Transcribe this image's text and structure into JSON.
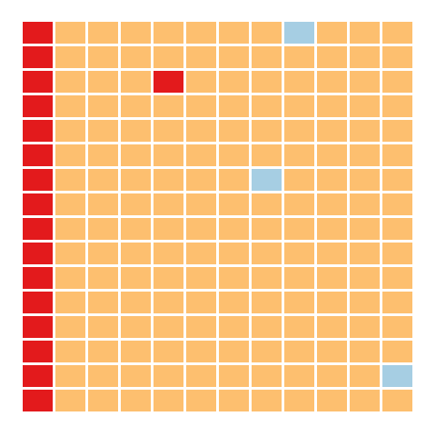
{
  "grid": {
    "rows": 16,
    "cols": 12,
    "colors": {
      "empty": "#fdbf6f",
      "red": "#e31a1c",
      "blue": "#a6cee3"
    },
    "cells": [
      [
        "red",
        "empty",
        "empty",
        "empty",
        "empty",
        "empty",
        "empty",
        "empty",
        "blue",
        "empty",
        "empty",
        "empty"
      ],
      [
        "red",
        "empty",
        "empty",
        "empty",
        "empty",
        "empty",
        "empty",
        "empty",
        "empty",
        "empty",
        "empty",
        "empty"
      ],
      [
        "red",
        "empty",
        "empty",
        "empty",
        "red",
        "empty",
        "empty",
        "empty",
        "empty",
        "empty",
        "empty",
        "empty"
      ],
      [
        "red",
        "empty",
        "empty",
        "empty",
        "empty",
        "empty",
        "empty",
        "empty",
        "empty",
        "empty",
        "empty",
        "empty"
      ],
      [
        "red",
        "empty",
        "empty",
        "empty",
        "empty",
        "empty",
        "empty",
        "empty",
        "empty",
        "empty",
        "empty",
        "empty"
      ],
      [
        "red",
        "empty",
        "empty",
        "empty",
        "empty",
        "empty",
        "empty",
        "empty",
        "empty",
        "empty",
        "empty",
        "empty"
      ],
      [
        "red",
        "empty",
        "empty",
        "empty",
        "empty",
        "empty",
        "empty",
        "blue",
        "empty",
        "empty",
        "empty",
        "empty"
      ],
      [
        "red",
        "empty",
        "empty",
        "empty",
        "empty",
        "empty",
        "empty",
        "empty",
        "empty",
        "empty",
        "empty",
        "empty"
      ],
      [
        "red",
        "empty",
        "empty",
        "empty",
        "empty",
        "empty",
        "empty",
        "empty",
        "empty",
        "empty",
        "empty",
        "empty"
      ],
      [
        "red",
        "empty",
        "empty",
        "empty",
        "empty",
        "empty",
        "empty",
        "empty",
        "empty",
        "empty",
        "empty",
        "empty"
      ],
      [
        "red",
        "empty",
        "empty",
        "empty",
        "empty",
        "empty",
        "empty",
        "empty",
        "empty",
        "empty",
        "empty",
        "empty"
      ],
      [
        "red",
        "empty",
        "empty",
        "empty",
        "empty",
        "empty",
        "empty",
        "empty",
        "empty",
        "empty",
        "empty",
        "empty"
      ],
      [
        "red",
        "empty",
        "empty",
        "empty",
        "empty",
        "empty",
        "empty",
        "empty",
        "empty",
        "empty",
        "empty",
        "empty"
      ],
      [
        "red",
        "empty",
        "empty",
        "empty",
        "empty",
        "empty",
        "empty",
        "empty",
        "empty",
        "empty",
        "empty",
        "empty"
      ],
      [
        "red",
        "empty",
        "empty",
        "empty",
        "empty",
        "empty",
        "empty",
        "empty",
        "empty",
        "empty",
        "empty",
        "blue"
      ],
      [
        "red",
        "empty",
        "empty",
        "empty",
        "empty",
        "empty",
        "empty",
        "empty",
        "empty",
        "empty",
        "empty",
        "empty"
      ]
    ]
  }
}
